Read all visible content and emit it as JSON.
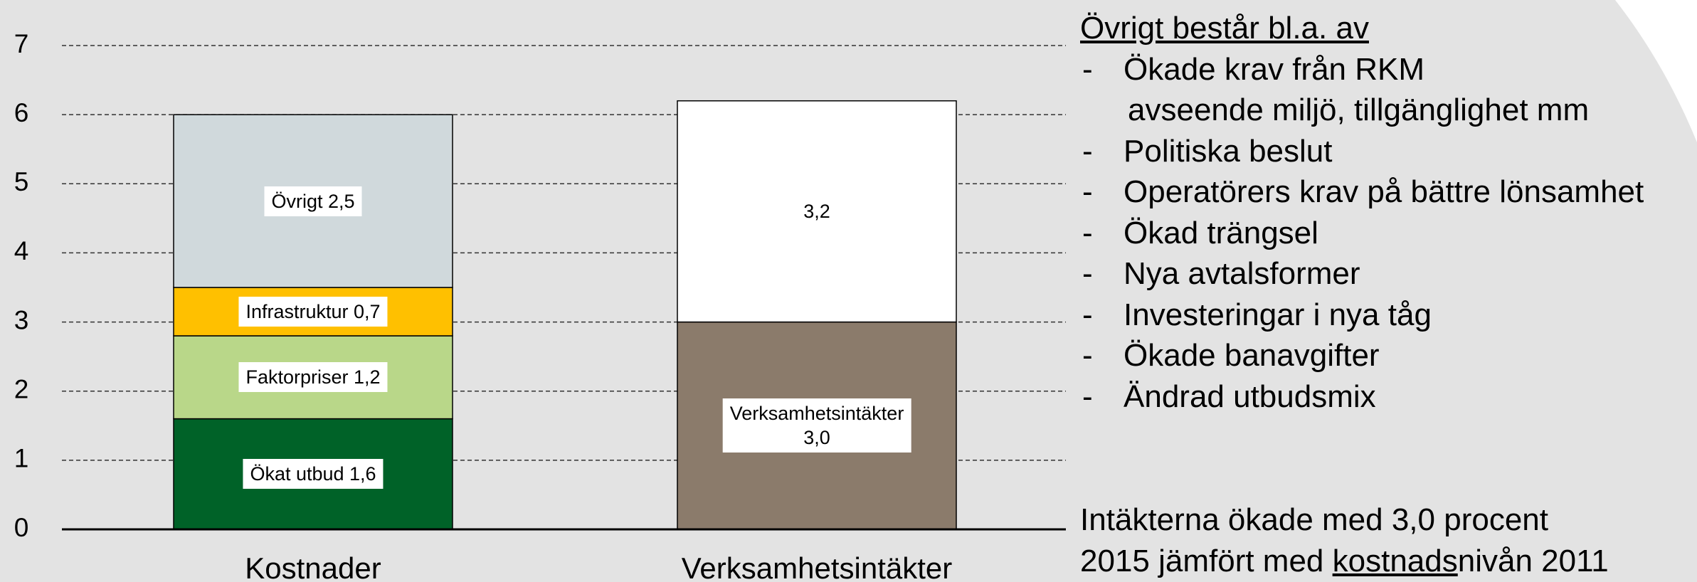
{
  "chart_data": {
    "type": "stacked_bar",
    "categories": [
      "Kostnader",
      "Verksamhetsintäkter"
    ],
    "series": [
      {
        "color": "#006228",
        "values": [
          1.6,
          null
        ],
        "value_labels": [
          "Ökat utbud 1,6",
          null
        ]
      },
      {
        "color": "#b9d789",
        "values": [
          1.2,
          null
        ],
        "value_labels": [
          "Faktorpriser 1,2",
          null
        ]
      },
      {
        "color": "#ffc000",
        "values": [
          0.7,
          null
        ],
        "value_labels": [
          "Infrastruktur 0,7",
          null
        ]
      },
      {
        "color": "#d0d9dc",
        "values": [
          2.5,
          null
        ],
        "value_labels": [
          "Övrigt 2,5",
          null
        ]
      },
      {
        "color": "#8b7b6b",
        "values": [
          null,
          3.0
        ],
        "value_labels": [
          null,
          "Verksamhetsintäkter\n3,0"
        ]
      },
      {
        "color": "#ffffff",
        "values": [
          null,
          3.2
        ],
        "value_labels": [
          null,
          "3,2"
        ]
      }
    ],
    "ylim": [
      0,
      7
    ],
    "yticks": [
      0,
      1,
      2,
      3,
      4,
      5,
      6,
      7
    ],
    "grid": true
  },
  "notes": {
    "heading": "Övrigt består bl.a. av",
    "items": [
      [
        "Ökade krav från RKM",
        "avseende miljö, tillgänglighet mm"
      ],
      [
        "Politiska beslut"
      ],
      [
        "Operatörers krav på bättre lönsamhet"
      ],
      [
        "Ökad trängsel"
      ],
      [
        "Nya avtalsformer"
      ],
      [
        "Investeringar i nya tåg"
      ],
      [
        "Ökade banavgifter"
      ],
      [
        "Ändrad utbudsmix"
      ]
    ],
    "footer": [
      "Intäkterna ökade med 3,0 procent",
      [
        "2015 jämfört med ",
        "kostnads",
        "nivån 2011"
      ]
    ]
  }
}
